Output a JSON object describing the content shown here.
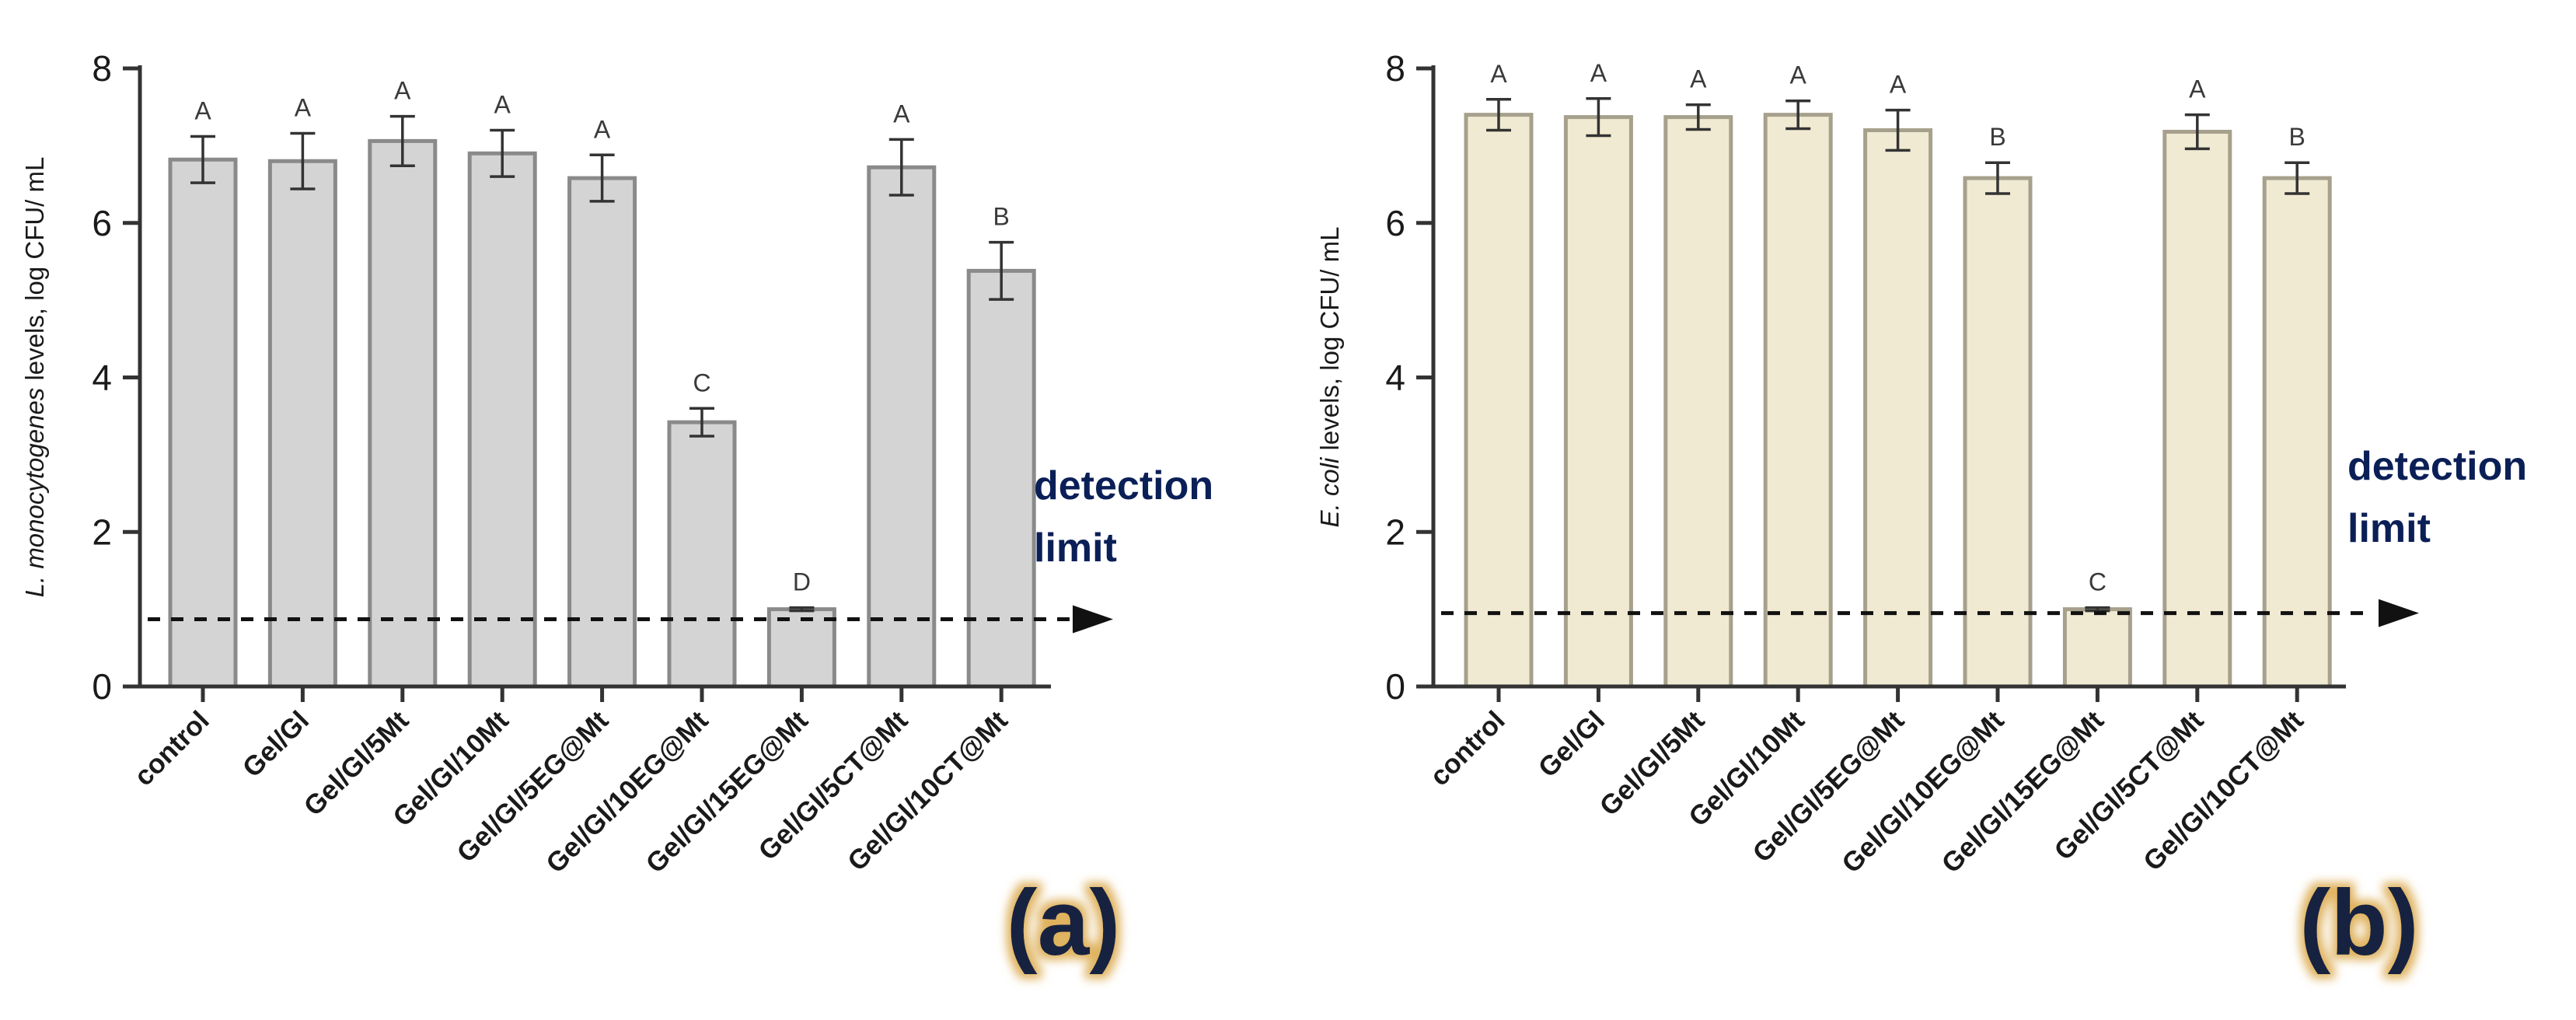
{
  "colors": {
    "panel_a_bar_fill": "#d4d4d4",
    "panel_a_bar_stroke": "#8a8a8a",
    "panel_b_bar_fill": "#f1ead2",
    "panel_b_bar_stroke": "#a6a08c",
    "axis": "#333333",
    "text": "#1a1a1a",
    "letter": "#3a3a3a",
    "panel_label": "#15223f",
    "panel_label_glow": "#d9a441",
    "annotation_text": "#0b1f57"
  },
  "chart_data": [
    {
      "type": "bar",
      "panel_label": "(a)",
      "ylabel_italic": "L. monocytogenes",
      "ylabel_rest": " levels, log CFU/ mL",
      "ylim": [
        0,
        8
      ],
      "yticks": [
        "0",
        "2",
        "4",
        "6",
        "8"
      ],
      "categories": [
        "control",
        "Gel/Gl",
        "Gel/Gl/5Mt",
        "Gel/Gl/10Mt",
        "Gel/Gl/5EG@Mt",
        "Gel/Gl/10EG@Mt",
        "Gel/Gl/15EG@Mt",
        "Gel/Gl/5CT@Mt",
        "Gel/Gl/10CT@Mt"
      ],
      "values": [
        6.82,
        6.8,
        7.06,
        6.9,
        6.58,
        3.42,
        1.0,
        6.72,
        5.38
      ],
      "errors": [
        0.3,
        0.36,
        0.32,
        0.3,
        0.3,
        0.18,
        0.02,
        0.36,
        0.37
      ],
      "letters": [
        "A",
        "A",
        "A",
        "A",
        "A",
        "C",
        "D",
        "A",
        "B"
      ],
      "detection_limit": 0.87,
      "annotation_lines": [
        "detection",
        "limit"
      ]
    },
    {
      "type": "bar",
      "panel_label": "(b)",
      "ylabel_italic": "E. coli",
      "ylabel_rest": " levels, log CFU/ mL",
      "ylim": [
        0,
        8
      ],
      "yticks": [
        "0",
        "2",
        "4",
        "6",
        "8"
      ],
      "categories": [
        "control",
        "Gel/Gl",
        "Gel/Gl/5Mt",
        "Gel/Gl/10Mt",
        "Gel/Gl/5EG@Mt",
        "Gel/Gl/10EG@Mt",
        "Gel/Gl/15EG@Mt",
        "Gel/Gl/5CT@Mt",
        "Gel/Gl/10CT@Mt"
      ],
      "values": [
        7.4,
        7.37,
        7.37,
        7.4,
        7.2,
        6.58,
        1.0,
        7.18,
        6.58
      ],
      "errors": [
        0.2,
        0.24,
        0.16,
        0.18,
        0.26,
        0.2,
        0.02,
        0.22,
        0.2
      ],
      "letters": [
        "A",
        "A",
        "A",
        "A",
        "A",
        "B",
        "C",
        "A",
        "B"
      ],
      "detection_limit": 0.95,
      "annotation_lines": [
        "detection",
        "limit"
      ]
    }
  ]
}
